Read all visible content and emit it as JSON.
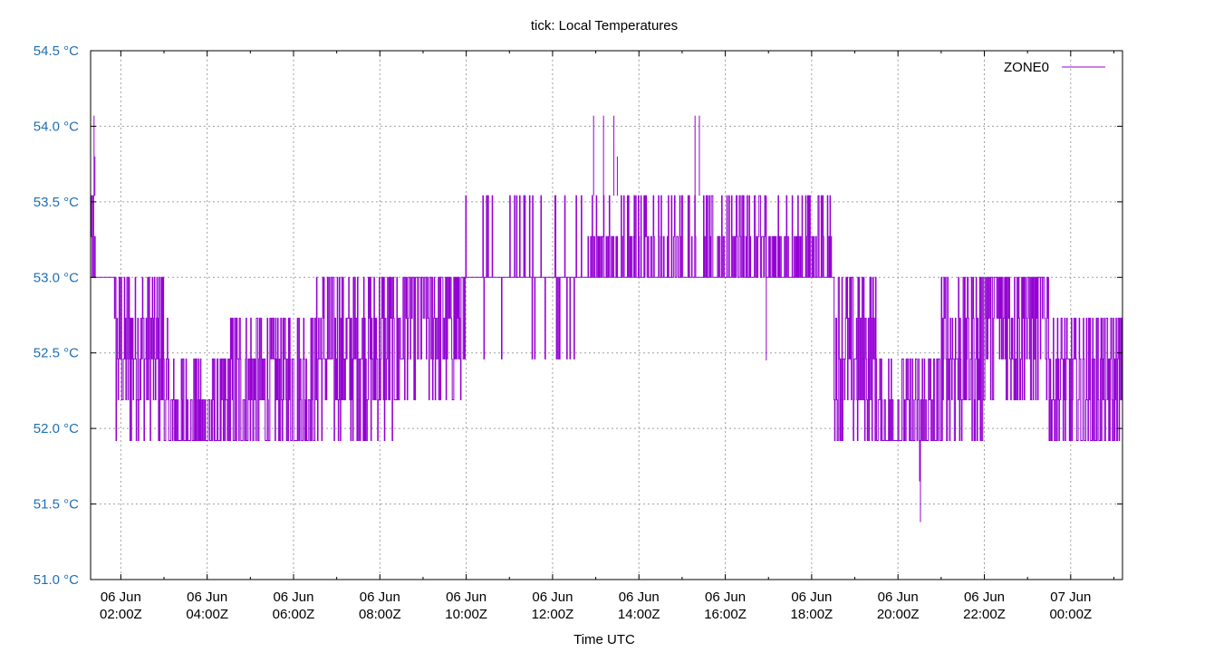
{
  "chart_data": {
    "type": "line",
    "title": "tick: Local Temperatures",
    "xlabel": "Time UTC",
    "ylabel": "",
    "ylim": [
      51.0,
      54.5
    ],
    "xlim": [
      1.3,
      25.2
    ],
    "y_ticks": [
      {
        "value": 51.0,
        "label": "51.0 °C"
      },
      {
        "value": 51.5,
        "label": "51.5 °C"
      },
      {
        "value": 52.0,
        "label": "52.0 °C"
      },
      {
        "value": 52.5,
        "label": "52.5 °C"
      },
      {
        "value": 53.0,
        "label": "53.0 °C"
      },
      {
        "value": 53.5,
        "label": "53.5 °C"
      },
      {
        "value": 54.0,
        "label": "54.0 °C"
      },
      {
        "value": 54.5,
        "label": "54.5 °C"
      }
    ],
    "x_ticks": [
      {
        "value": 2,
        "date": "06 Jun",
        "time": "02:00Z"
      },
      {
        "value": 4,
        "date": "06 Jun",
        "time": "04:00Z"
      },
      {
        "value": 6,
        "date": "06 Jun",
        "time": "06:00Z"
      },
      {
        "value": 8,
        "date": "06 Jun",
        "time": "08:00Z"
      },
      {
        "value": 10,
        "date": "06 Jun",
        "time": "10:00Z"
      },
      {
        "value": 12,
        "date": "06 Jun",
        "time": "12:00Z"
      },
      {
        "value": 14,
        "date": "06 Jun",
        "time": "14:00Z"
      },
      {
        "value": 16,
        "date": "06 Jun",
        "time": "16:00Z"
      },
      {
        "value": 18,
        "date": "06 Jun",
        "time": "18:00Z"
      },
      {
        "value": 20,
        "date": "06 Jun",
        "time": "20:00Z"
      },
      {
        "value": 22,
        "date": "06 Jun",
        "time": "22:00Z"
      },
      {
        "value": 24,
        "date": "07 Jun",
        "time": "00:00Z"
      }
    ],
    "grid": true,
    "legend": "top-right",
    "series": [
      {
        "name": "ZONE0",
        "color": "#9400d3",
        "base_levels": [
          {
            "from": 1.3,
            "to": 1.42,
            "y": 53.25
          },
          {
            "from": 1.42,
            "to": 1.85,
            "y": 53.0
          },
          {
            "from": 1.85,
            "to": 3.0,
            "y": 52.5
          },
          {
            "from": 3.0,
            "to": 4.5,
            "y": 52.0
          },
          {
            "from": 4.5,
            "to": 6.5,
            "y": 52.25
          },
          {
            "from": 6.5,
            "to": 8.5,
            "y": 52.5
          },
          {
            "from": 8.5,
            "to": 9.9,
            "y": 52.75
          },
          {
            "from": 9.9,
            "to": 10.4,
            "y": 53.0
          },
          {
            "from": 10.4,
            "to": 12.8,
            "y": 53.0
          },
          {
            "from": 12.8,
            "to": 14.0,
            "y": 53.25
          },
          {
            "from": 14.0,
            "to": 17.0,
            "y": 53.0
          },
          {
            "from": 17.0,
            "to": 18.5,
            "y": 53.0
          },
          {
            "from": 18.5,
            "to": 19.5,
            "y": 52.5
          },
          {
            "from": 19.5,
            "to": 21.0,
            "y": 52.0
          },
          {
            "from": 21.0,
            "to": 22.0,
            "y": 52.5
          },
          {
            "from": 22.0,
            "to": 23.5,
            "y": 52.75
          },
          {
            "from": 23.5,
            "to": 25.2,
            "y": 52.25
          }
        ],
        "spikes": [
          {
            "x": 1.38,
            "y": 54.07
          },
          {
            "x": 1.4,
            "y": 53.8
          },
          {
            "x": 12.95,
            "y": 54.07
          },
          {
            "x": 13.18,
            "y": 54.07
          },
          {
            "x": 13.42,
            "y": 54.07
          },
          {
            "x": 13.5,
            "y": 53.8
          },
          {
            "x": 15.3,
            "y": 54.07
          },
          {
            "x": 15.4,
            "y": 54.07
          },
          {
            "x": 16.95,
            "y": 52.45
          },
          {
            "x": 20.5,
            "y": 51.65
          },
          {
            "x": 20.52,
            "y": 51.38
          }
        ]
      }
    ]
  }
}
